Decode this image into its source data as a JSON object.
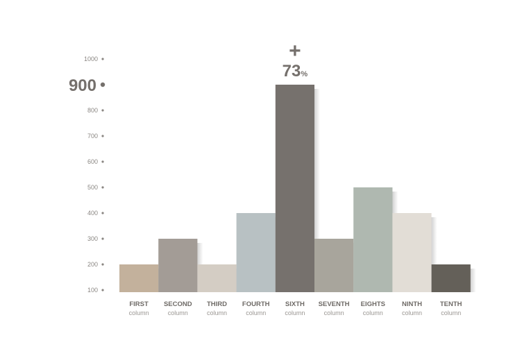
{
  "chart_data": {
    "type": "bar",
    "categories": [
      "FIRST",
      "SECOND",
      "THIRD",
      "FOURTH",
      "SIXTH",
      "SEVENTH",
      "EIGHTS",
      "NINTH",
      "TENTH"
    ],
    "subtitle_label": "column",
    "values": [
      200,
      300,
      200,
      400,
      900,
      300,
      500,
      400,
      200
    ],
    "colors": [
      "#c3b19c",
      "#a39c96",
      "#d4cdc4",
      "#b8c1c3",
      "#76716d",
      "#a8a59c",
      "#afb8b0",
      "#e2ddd6",
      "#646059"
    ],
    "y_ticks": [
      100,
      200,
      300,
      400,
      500,
      600,
      700,
      800,
      900,
      1000
    ],
    "highlight_tick": 900,
    "ylim": [
      100,
      1000
    ],
    "annotation": {
      "sign": "+",
      "value": "73",
      "unit": "%",
      "category": "SIXTH"
    },
    "grid": false
  }
}
